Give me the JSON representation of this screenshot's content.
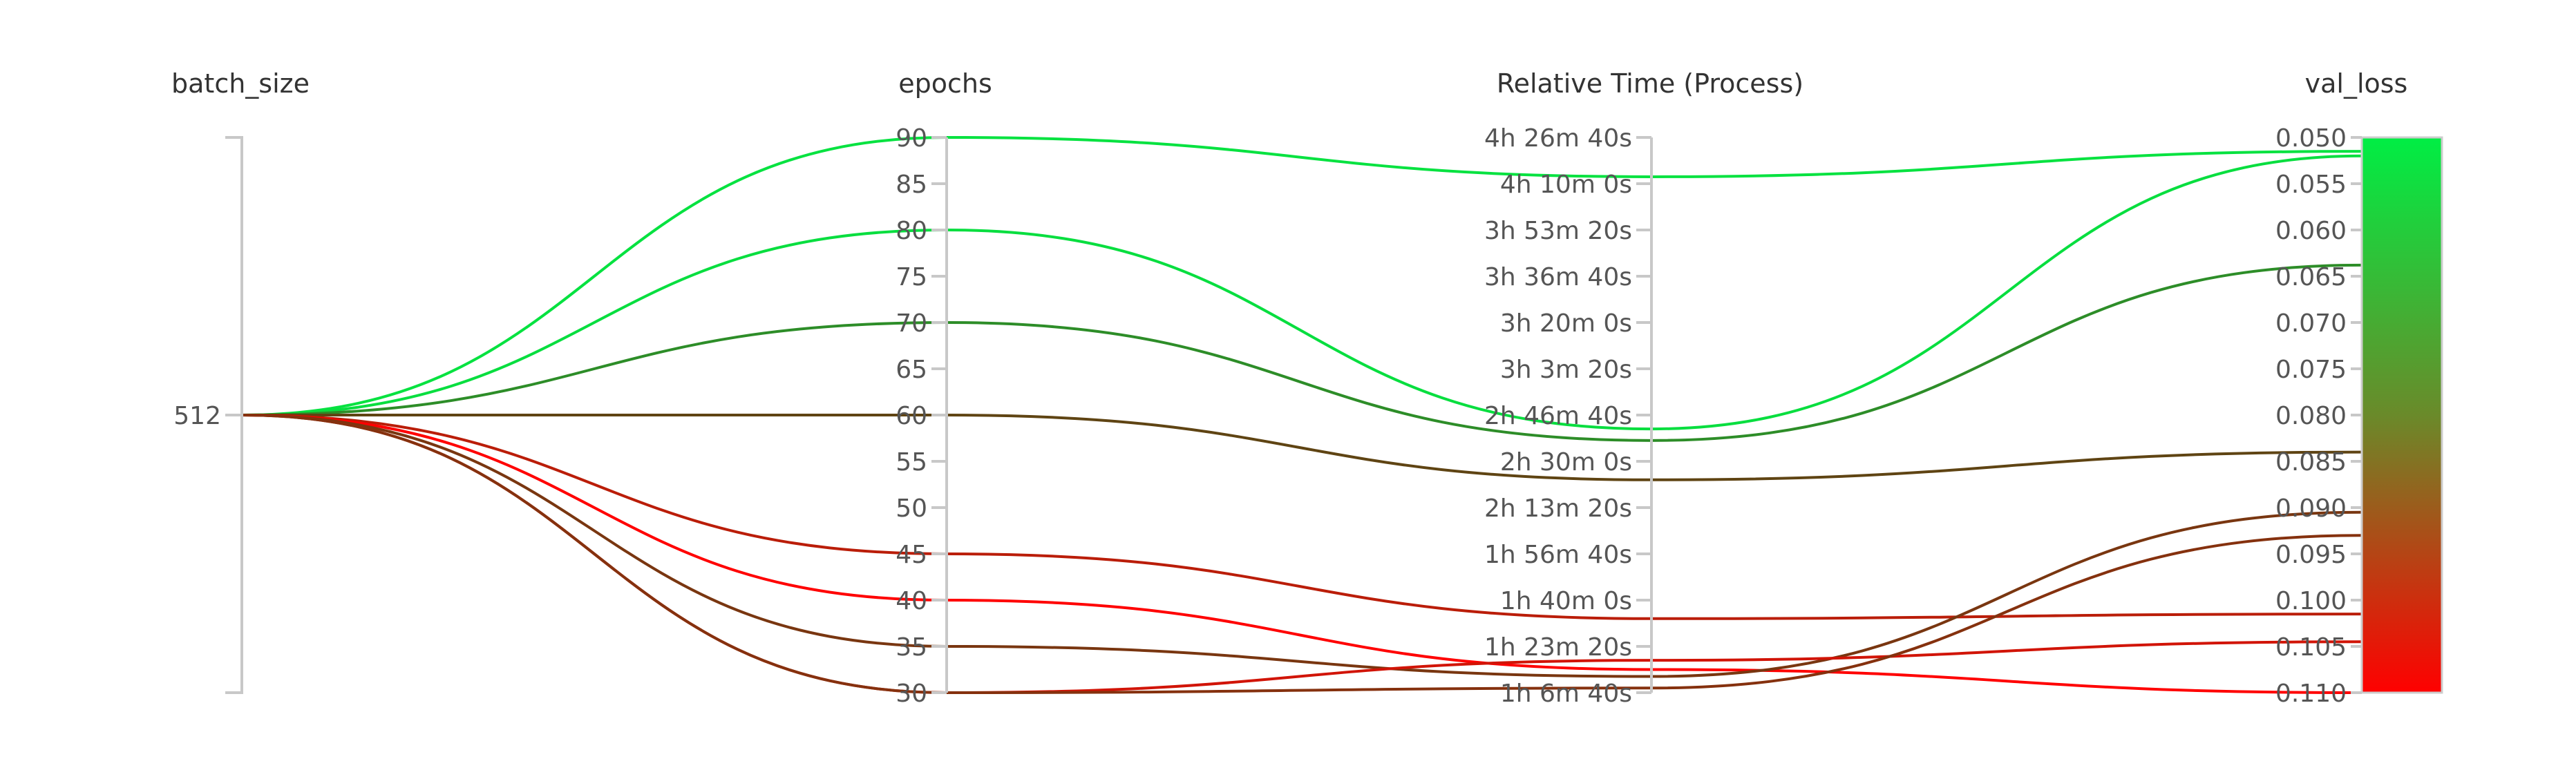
{
  "chart_data": {
    "type": "parallel_coordinates",
    "axes": [
      {
        "key": "batch_size",
        "label": "batch_size",
        "ticks": [
          "512"
        ]
      },
      {
        "key": "epochs",
        "label": "epochs",
        "range": [
          30,
          90
        ],
        "ticks": [
          "90",
          "85",
          "80",
          "75",
          "70",
          "65",
          "60",
          "55",
          "50",
          "45",
          "40",
          "35",
          "30"
        ]
      },
      {
        "key": "relative_time",
        "label": "Relative Time (Process)",
        "range_seconds": [
          4000,
          16000
        ],
        "ticks": [
          "4h 26m 40s",
          "4h 10m 0s",
          "3h 53m 20s",
          "3h 36m 40s",
          "3h 20m 0s",
          "3h 3m 20s",
          "2h 46m 40s",
          "2h 30m 0s",
          "2h 13m 20s",
          "1h 56m 40s",
          "1h 40m 0s",
          "1h 23m 20s",
          "1h 6m 40s"
        ]
      },
      {
        "key": "val_loss",
        "label": "val_loss",
        "range": [
          0.05,
          0.11
        ],
        "ticks": [
          "0.050",
          "0.055",
          "0.060",
          "0.065",
          "0.070",
          "0.075",
          "0.080",
          "0.085",
          "0.090",
          "0.095",
          "0.100",
          "0.105",
          "0.110"
        ]
      }
    ],
    "colorscale": {
      "metric": "val_loss",
      "low_color": "#00ee44",
      "high_color": "#ff0000"
    },
    "runs": [
      {
        "batch_size": 512,
        "epochs": 90,
        "relative_time": 15150,
        "val_loss": 0.0515
      },
      {
        "batch_size": 512,
        "epochs": 80,
        "relative_time": 9700,
        "val_loss": 0.052
      },
      {
        "batch_size": 512,
        "epochs": 70,
        "relative_time": 9450,
        "val_loss": 0.0638
      },
      {
        "batch_size": 512,
        "epochs": 60,
        "relative_time": 8600,
        "val_loss": 0.084
      },
      {
        "batch_size": 512,
        "epochs": 45,
        "relative_time": 5600,
        "val_loss": 0.1015
      },
      {
        "batch_size": 512,
        "epochs": 40,
        "relative_time": 4500,
        "val_loss": 0.11
      },
      {
        "batch_size": 512,
        "epochs": 35,
        "relative_time": 4350,
        "val_loss": 0.0905
      },
      {
        "batch_size": 512,
        "epochs": 30,
        "relative_time": 4700,
        "val_loss": 0.1045
      },
      {
        "batch_size": 512,
        "epochs": 30,
        "relative_time": 4100,
        "val_loss": 0.093
      }
    ]
  }
}
